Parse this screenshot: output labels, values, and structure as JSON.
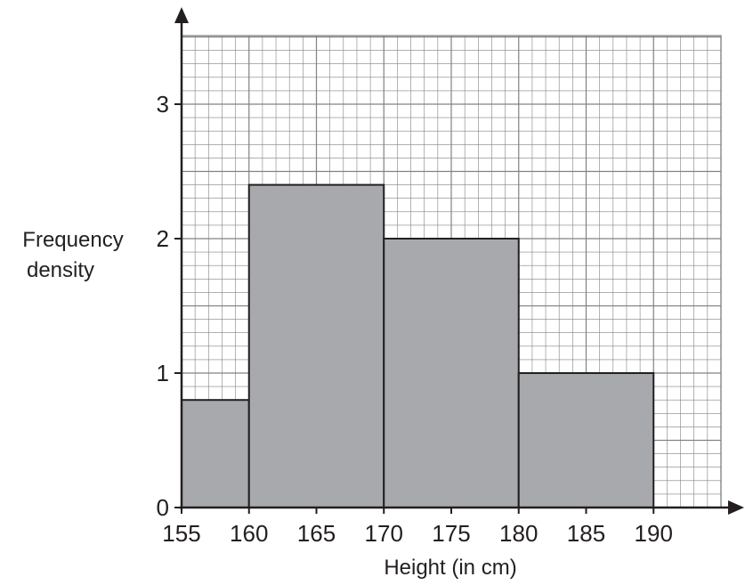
{
  "chart_data": {
    "type": "bar",
    "subtype": "histogram",
    "title": "",
    "xlabel": "Height (in cm)",
    "ylabel_lines": [
      "Frequency",
      "density"
    ],
    "xlim": [
      155,
      195
    ],
    "ylim": [
      0,
      3.5
    ],
    "x_ticks": [
      "155",
      "160",
      "165",
      "170",
      "175",
      "180",
      "185",
      "190"
    ],
    "y_ticks": [
      "0",
      "1",
      "2",
      "3"
    ],
    "grid": true,
    "bins": [
      {
        "x0": 155,
        "x1": 160,
        "value": 0.8
      },
      {
        "x0": 160,
        "x1": 170,
        "value": 2.4
      },
      {
        "x0": 170,
        "x1": 180,
        "value": 2.0
      },
      {
        "x0": 180,
        "x1": 190,
        "value": 1.0
      }
    ],
    "colors": {
      "bar_fill": "#a7a9ac",
      "grid": "#808285",
      "ink": "#231f20"
    }
  }
}
